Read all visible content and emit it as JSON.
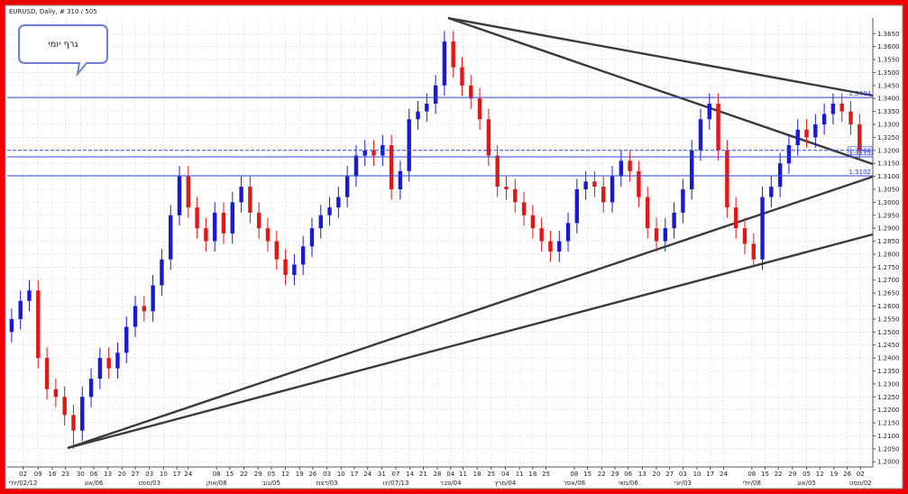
{
  "chart_data": {
    "type": "candlestick",
    "title": "EURUSD, Daily, # 310 / 505",
    "annotation": "גרף יומי",
    "up_color": "#1a1ad6",
    "down_color": "#e01818",
    "grid": true,
    "xlim": [
      -0.5,
      97.5
    ],
    "ylim": [
      1.198,
      1.371
    ],
    "yticks": [
      {
        "value": 1.2,
        "label": "1.2000"
      },
      {
        "value": 1.205,
        "label": "1.2050"
      },
      {
        "value": 1.21,
        "label": "1.2100"
      },
      {
        "value": 1.215,
        "label": "1.2150"
      },
      {
        "value": 1.22,
        "label": "1.2200"
      },
      {
        "value": 1.225,
        "label": "1.2250"
      },
      {
        "value": 1.23,
        "label": "1.2300"
      },
      {
        "value": 1.235,
        "label": "1.2350"
      },
      {
        "value": 1.24,
        "label": "1.2400"
      },
      {
        "value": 1.245,
        "label": "1.2450"
      },
      {
        "value": 1.25,
        "label": "1.2500"
      },
      {
        "value": 1.255,
        "label": "1.2550"
      },
      {
        "value": 1.26,
        "label": "1.2600"
      },
      {
        "value": 1.265,
        "label": "1.2650"
      },
      {
        "value": 1.27,
        "label": "1.2700"
      },
      {
        "value": 1.275,
        "label": "1.2750"
      },
      {
        "value": 1.28,
        "label": "1.2800"
      },
      {
        "value": 1.285,
        "label": "1.2850"
      },
      {
        "value": 1.29,
        "label": "1.2900"
      },
      {
        "value": 1.295,
        "label": "1.2950"
      },
      {
        "value": 1.3,
        "label": "1.3000"
      },
      {
        "value": 1.305,
        "label": "1.3050"
      },
      {
        "value": 1.31,
        "label": "1.3100"
      },
      {
        "value": 1.315,
        "label": "1.3150"
      },
      {
        "value": 1.32,
        "label": "1.3200"
      },
      {
        "value": 1.325,
        "label": "1.3250"
      },
      {
        "value": 1.33,
        "label": "1.3300"
      },
      {
        "value": 1.335,
        "label": "1.3350"
      },
      {
        "value": 1.34,
        "label": "1.3400"
      },
      {
        "value": 1.345,
        "label": "1.3450"
      },
      {
        "value": 1.35,
        "label": "1.3500"
      },
      {
        "value": 1.355,
        "label": "1.3550"
      },
      {
        "value": 1.36,
        "label": "1.3600"
      },
      {
        "value": 1.365,
        "label": "1.3650"
      }
    ],
    "xticks": [
      {
        "value": 1.3,
        "label": "02"
      },
      {
        "value": 3.0,
        "label": "09"
      },
      {
        "value": 4.6,
        "label": "16"
      },
      {
        "value": 6.1,
        "label": "23"
      },
      {
        "value": 7.8,
        "label": "30"
      },
      {
        "value": 9.3,
        "label": "06"
      },
      {
        "value": 10.9,
        "label": "13"
      },
      {
        "value": 12.5,
        "label": "20"
      },
      {
        "value": 14.0,
        "label": "27"
      },
      {
        "value": 15.6,
        "label": "03"
      },
      {
        "value": 17.2,
        "label": "10"
      },
      {
        "value": 18.7,
        "label": "17"
      },
      {
        "value": 20.0,
        "label": "24"
      },
      {
        "value": 23.2,
        "label": "08"
      },
      {
        "value": 24.7,
        "label": "15"
      },
      {
        "value": 26.3,
        "label": "22"
      },
      {
        "value": 27.9,
        "label": "29"
      },
      {
        "value": 29.4,
        "label": "05"
      },
      {
        "value": 31.0,
        "label": "12"
      },
      {
        "value": 32.6,
        "label": "19"
      },
      {
        "value": 34.1,
        "label": "26"
      },
      {
        "value": 35.7,
        "label": "03"
      },
      {
        "value": 37.3,
        "label": "10"
      },
      {
        "value": 38.8,
        "label": "17"
      },
      {
        "value": 40.3,
        "label": "24"
      },
      {
        "value": 41.9,
        "label": "31"
      },
      {
        "value": 43.5,
        "label": "07"
      },
      {
        "value": 45.1,
        "label": "14"
      },
      {
        "value": 46.6,
        "label": "21"
      },
      {
        "value": 48.2,
        "label": "28"
      },
      {
        "value": 49.7,
        "label": "04"
      },
      {
        "value": 51.1,
        "label": "11"
      },
      {
        "value": 52.7,
        "label": "18"
      },
      {
        "value": 54.3,
        "label": "25"
      },
      {
        "value": 55.9,
        "label": "04"
      },
      {
        "value": 57.5,
        "label": "11"
      },
      {
        "value": 59.0,
        "label": "18"
      },
      {
        "value": 60.5,
        "label": "25"
      },
      {
        "value": 63.7,
        "label": "08"
      },
      {
        "value": 65.2,
        "label": "15"
      },
      {
        "value": 66.8,
        "label": "22"
      },
      {
        "value": 68.3,
        "label": "29"
      },
      {
        "value": 69.8,
        "label": "06"
      },
      {
        "value": 71.4,
        "label": "13"
      },
      {
        "value": 73.0,
        "label": "20"
      },
      {
        "value": 74.5,
        "label": "27"
      },
      {
        "value": 76.0,
        "label": "03"
      },
      {
        "value": 77.6,
        "label": "10"
      },
      {
        "value": 79.1,
        "label": "17"
      },
      {
        "value": 80.6,
        "label": "24"
      },
      {
        "value": 83.8,
        "label": "08"
      },
      {
        "value": 85.3,
        "label": "15"
      },
      {
        "value": 86.8,
        "label": "22"
      },
      {
        "value": 88.4,
        "label": "29"
      },
      {
        "value": 90.0,
        "label": "05"
      },
      {
        "value": 91.5,
        "label": "12"
      },
      {
        "value": 93.1,
        "label": "19"
      },
      {
        "value": 94.6,
        "label": "26"
      },
      {
        "value": 96.1,
        "label": "02"
      }
    ],
    "month_ticks": [
      {
        "value": 1.3,
        "label": "02/12/יולי"
      },
      {
        "value": 9.3,
        "label": "06/אוג"
      },
      {
        "value": 15.6,
        "label": "03/ספט"
      },
      {
        "value": 23.2,
        "label": "08/אוק"
      },
      {
        "value": 29.4,
        "label": "05/נוב"
      },
      {
        "value": 35.7,
        "label": "03/דצמ"
      },
      {
        "value": 43.5,
        "label": "07/13/ינו"
      },
      {
        "value": 49.7,
        "label": "04/פבר"
      },
      {
        "value": 55.9,
        "label": "04/מרץ"
      },
      {
        "value": 63.7,
        "label": "08/אפר"
      },
      {
        "value": 69.8,
        "label": "06/מאי"
      },
      {
        "value": 76.0,
        "label": "03/יוני"
      },
      {
        "value": 83.8,
        "label": "08/יולי"
      },
      {
        "value": 90.0,
        "label": "05/אוג"
      },
      {
        "value": 96.1,
        "label": "02/ספט"
      }
    ],
    "levels": [
      1.3404,
      1.3175,
      1.3102
    ],
    "current_price": {
      "value": 1.32,
      "label": "1.3200"
    },
    "open": [
      1.25,
      1.255,
      1.262,
      1.266,
      1.24,
      1.228,
      1.225,
      1.218,
      1.212,
      1.225,
      1.232,
      1.24,
      1.236,
      1.242,
      1.252,
      1.26,
      1.258,
      1.268,
      1.278,
      1.295,
      1.31,
      1.298,
      1.29,
      1.285,
      1.296,
      1.288,
      1.3,
      1.306,
      1.296,
      1.29,
      1.285,
      1.278,
      1.272,
      1.276,
      1.283,
      1.29,
      1.295,
      1.298,
      1.302,
      1.31,
      1.318,
      1.32,
      1.318,
      1.322,
      1.305,
      1.312,
      1.332,
      1.335,
      1.338,
      1.345,
      1.362,
      1.352,
      1.345,
      1.34,
      1.332,
      1.318,
      1.306,
      1.305,
      1.3,
      1.295,
      1.29,
      1.285,
      1.281,
      1.285,
      1.292,
      1.305,
      1.308,
      1.306,
      1.3,
      1.31,
      1.316,
      1.312,
      1.302,
      1.29,
      1.285,
      1.29,
      1.296,
      1.305,
      1.32,
      1.332,
      1.338,
      1.32,
      1.298,
      1.29,
      1.284,
      1.278,
      1.302,
      1.306,
      1.315,
      1.322,
      1.328,
      1.325,
      1.33,
      1.334,
      1.338,
      1.335,
      1.33
    ],
    "high": [
      1.259,
      1.266,
      1.27,
      1.27,
      1.244,
      1.232,
      1.229,
      1.222,
      1.229,
      1.236,
      1.244,
      1.244,
      1.246,
      1.256,
      1.264,
      1.264,
      1.272,
      1.282,
      1.299,
      1.314,
      1.314,
      1.302,
      1.294,
      1.3,
      1.3,
      1.304,
      1.31,
      1.31,
      1.3,
      1.294,
      1.289,
      1.282,
      1.28,
      1.287,
      1.294,
      1.299,
      1.302,
      1.306,
      1.314,
      1.322,
      1.324,
      1.324,
      1.326,
      1.326,
      1.316,
      1.336,
      1.339,
      1.342,
      1.349,
      1.366,
      1.366,
      1.356,
      1.349,
      1.344,
      1.336,
      1.322,
      1.31,
      1.309,
      1.304,
      1.299,
      1.294,
      1.289,
      1.289,
      1.296,
      1.309,
      1.312,
      1.312,
      1.31,
      1.314,
      1.32,
      1.32,
      1.316,
      1.306,
      1.294,
      1.294,
      1.3,
      1.309,
      1.324,
      1.336,
      1.342,
      1.342,
      1.324,
      1.302,
      1.294,
      1.288,
      1.306,
      1.31,
      1.319,
      1.326,
      1.332,
      1.332,
      1.334,
      1.338,
      1.342,
      1.342,
      1.339,
      1.334
    ],
    "low": [
      1.246,
      1.251,
      1.258,
      1.236,
      1.224,
      1.221,
      1.214,
      1.205,
      1.208,
      1.221,
      1.228,
      1.232,
      1.232,
      1.238,
      1.248,
      1.254,
      1.254,
      1.264,
      1.274,
      1.291,
      1.294,
      1.286,
      1.281,
      1.281,
      1.284,
      1.284,
      1.296,
      1.292,
      1.286,
      1.281,
      1.274,
      1.268,
      1.268,
      1.272,
      1.279,
      1.286,
      1.291,
      1.294,
      1.298,
      1.306,
      1.314,
      1.314,
      1.314,
      1.301,
      1.301,
      1.308,
      1.328,
      1.331,
      1.334,
      1.341,
      1.348,
      1.341,
      1.336,
      1.328,
      1.314,
      1.302,
      1.301,
      1.296,
      1.291,
      1.286,
      1.281,
      1.277,
      1.277,
      1.281,
      1.288,
      1.301,
      1.302,
      1.296,
      1.296,
      1.306,
      1.308,
      1.298,
      1.286,
      1.281,
      1.281,
      1.286,
      1.292,
      1.301,
      1.316,
      1.328,
      1.316,
      1.294,
      1.286,
      1.28,
      1.275,
      1.274,
      1.298,
      1.302,
      1.311,
      1.318,
      1.321,
      1.321,
      1.326,
      1.33,
      1.331,
      1.326,
      1.316
    ],
    "close": [
      1.255,
      1.262,
      1.266,
      1.24,
      1.228,
      1.225,
      1.218,
      1.212,
      1.225,
      1.232,
      1.24,
      1.236,
      1.242,
      1.252,
      1.26,
      1.258,
      1.268,
      1.278,
      1.295,
      1.31,
      1.298,
      1.29,
      1.285,
      1.296,
      1.288,
      1.3,
      1.306,
      1.296,
      1.29,
      1.285,
      1.278,
      1.272,
      1.276,
      1.283,
      1.29,
      1.295,
      1.298,
      1.302,
      1.31,
      1.318,
      1.32,
      1.318,
      1.322,
      1.305,
      1.312,
      1.332,
      1.335,
      1.338,
      1.345,
      1.362,
      1.352,
      1.345,
      1.34,
      1.332,
      1.318,
      1.306,
      1.305,
      1.3,
      1.295,
      1.29,
      1.285,
      1.281,
      1.285,
      1.292,
      1.305,
      1.308,
      1.306,
      1.3,
      1.31,
      1.316,
      1.312,
      1.302,
      1.29,
      1.285,
      1.29,
      1.296,
      1.305,
      1.32,
      1.332,
      1.338,
      1.32,
      1.298,
      1.29,
      1.284,
      1.278,
      1.302,
      1.306,
      1.315,
      1.322,
      1.328,
      1.325,
      1.33,
      1.334,
      1.338,
      1.335,
      1.33,
      1.32
    ]
  }
}
